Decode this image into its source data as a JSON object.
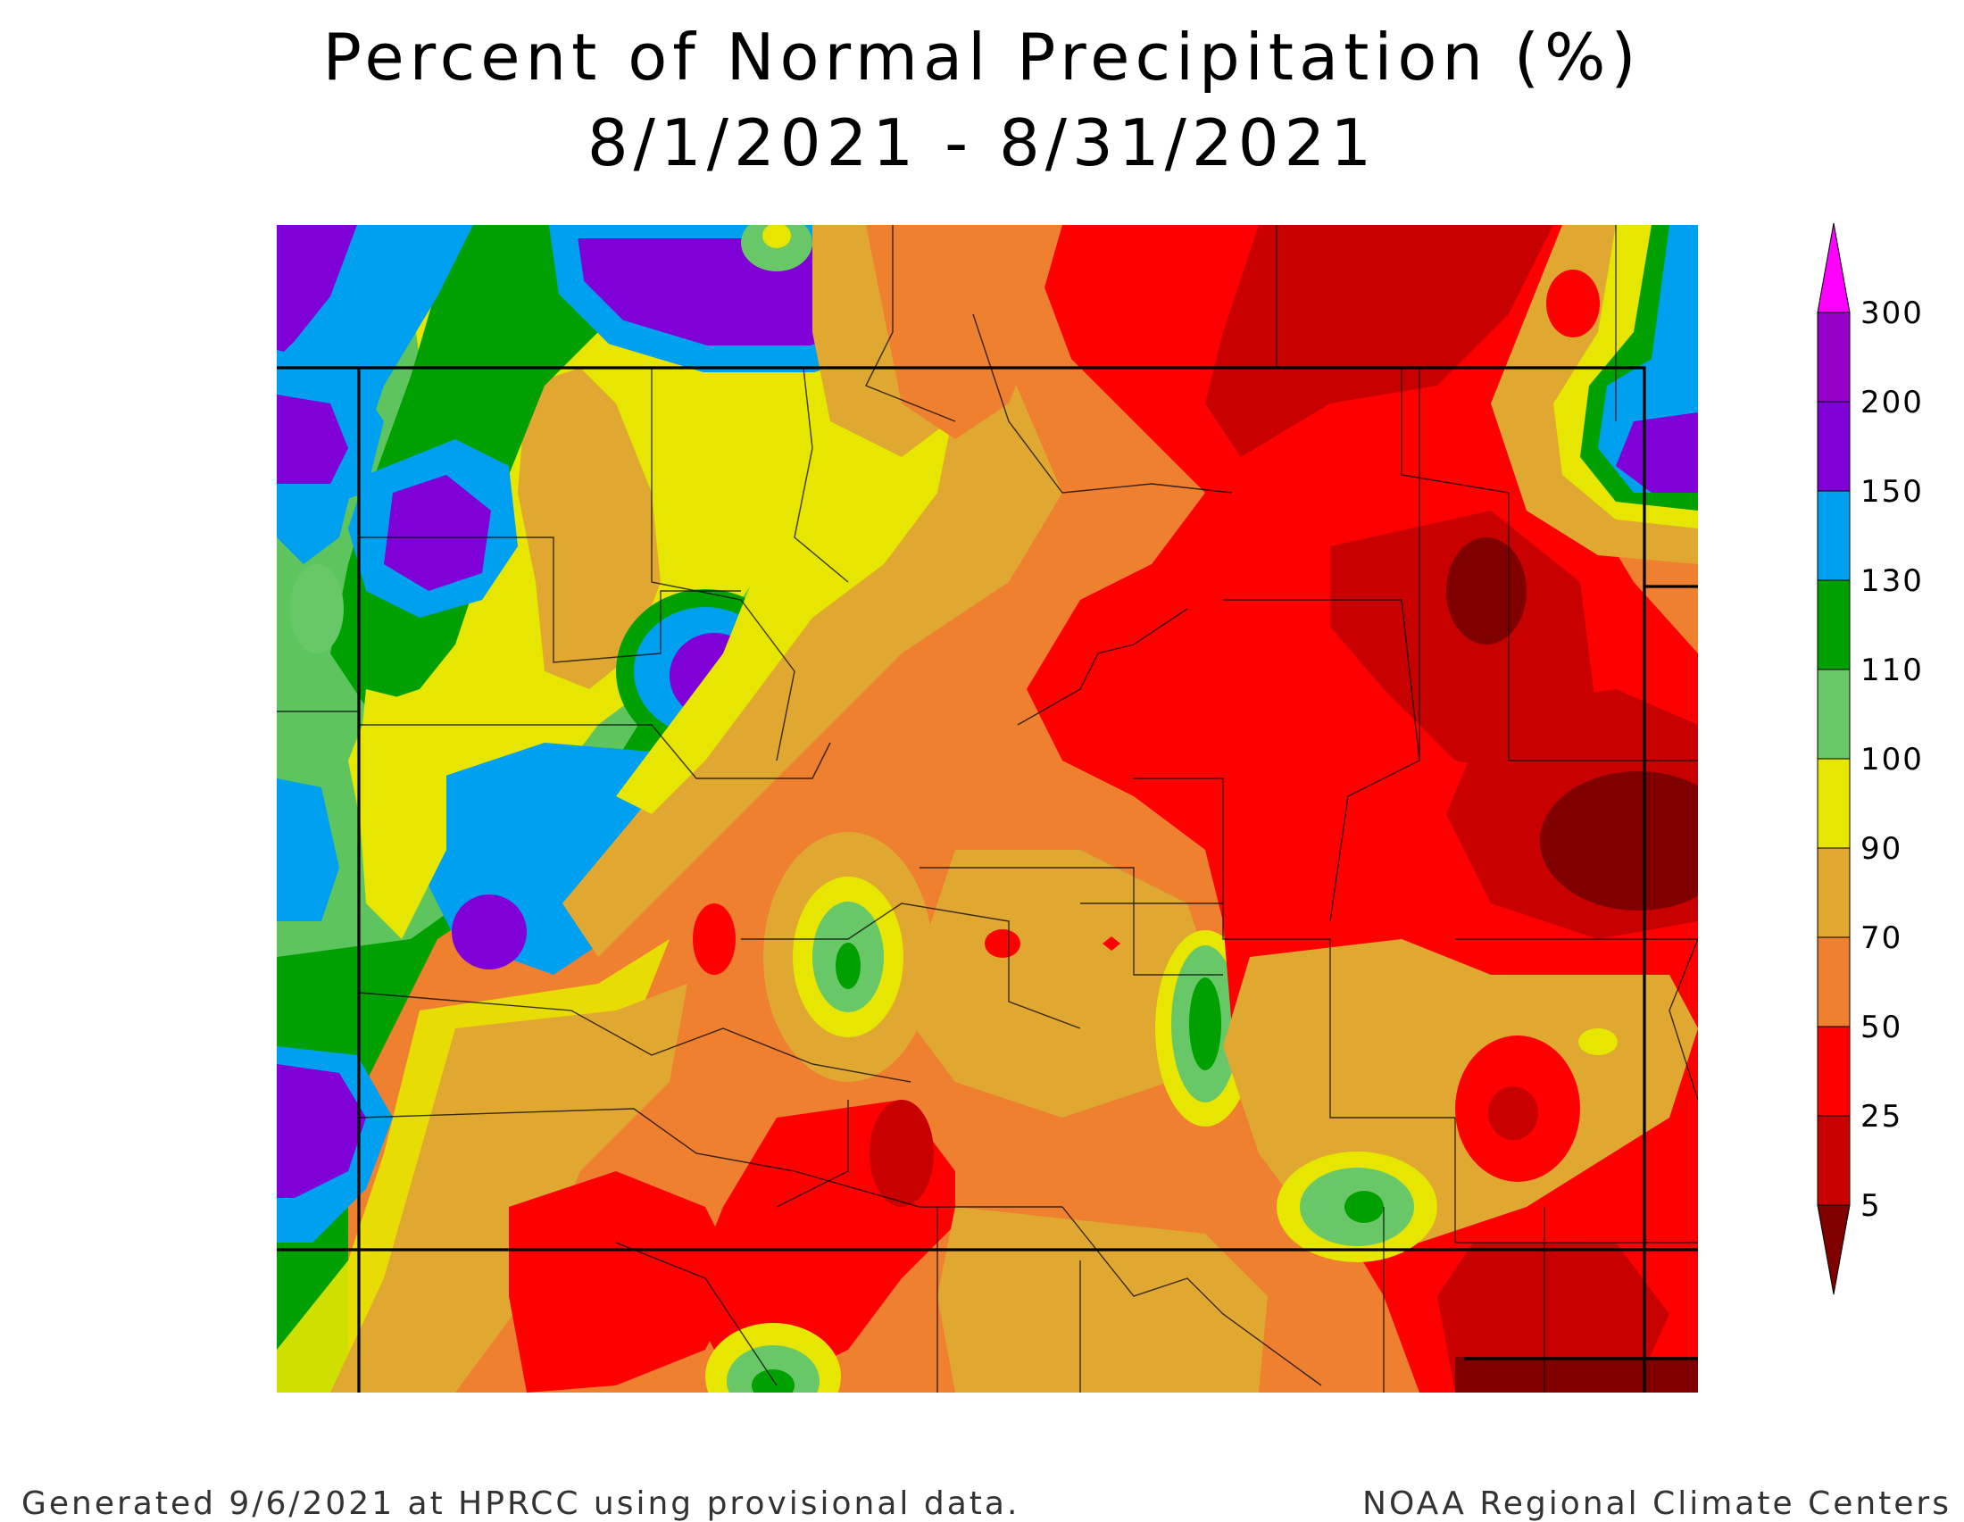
{
  "title": "Percent of Normal Precipitation (%)",
  "subtitle": "8/1/2021 - 8/31/2021",
  "legend": {
    "levels": [
      {
        "value": "300",
        "color": "#ff00ff"
      },
      {
        "value": "200",
        "color": "#9400c8"
      },
      {
        "value": "150",
        "color": "#8000d8"
      },
      {
        "value": "130",
        "color": "#00a0f0"
      },
      {
        "value": "110",
        "color": "#00a000"
      },
      {
        "value": "100",
        "color": "#68c868"
      },
      {
        "value": "90",
        "color": "#e6e600"
      },
      {
        "value": "70",
        "color": "#e0a830"
      },
      {
        "value": "50",
        "color": "#ee8030"
      },
      {
        "value": "25",
        "color": "#ff0000"
      },
      {
        "value": "5",
        "color": "#c80000"
      }
    ],
    "below_color": "#800000",
    "top_arrow_color": "#ff00ff"
  },
  "footer": {
    "left": "Generated 9/6/2021 at HPRCC using provisional data.",
    "right": "NOAA Regional Climate Centers"
  }
}
